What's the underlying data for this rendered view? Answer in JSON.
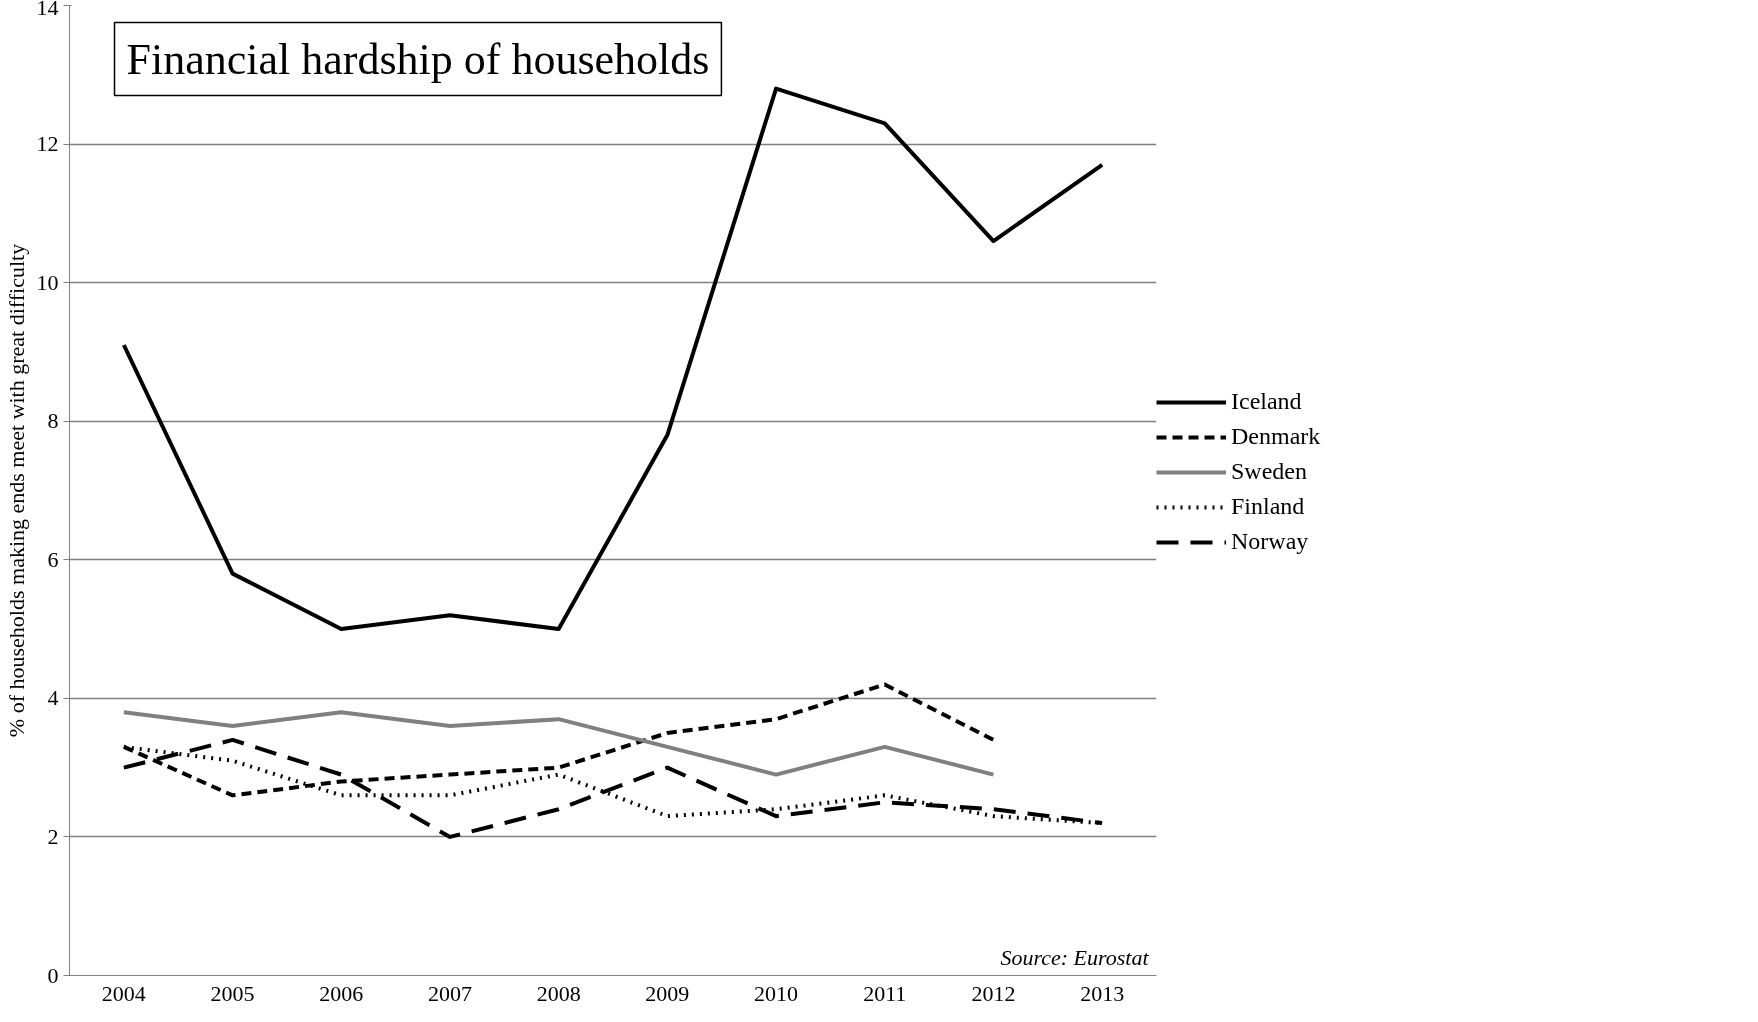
{
  "chart_data": {
    "type": "line",
    "title": "Financial hardship of households",
    "ylabel": "% of households making ends meet with great difficulty",
    "categories": [
      "2004",
      "2005",
      "2006",
      "2007",
      "2008",
      "2009",
      "2010",
      "2011",
      "2012",
      "2013"
    ],
    "series": [
      {
        "name": "Iceland",
        "color": "#000000",
        "line_style": "solid",
        "values": [
          9.1,
          5.8,
          5.0,
          5.2,
          5.0,
          7.8,
          12.8,
          12.3,
          10.6,
          11.7
        ]
      },
      {
        "name": "Denmark",
        "color": "#000000",
        "line_style": "dashed",
        "values": [
          3.3,
          2.6,
          2.8,
          2.9,
          3.0,
          3.5,
          3.7,
          4.2,
          3.4,
          null
        ]
      },
      {
        "name": "Sweden",
        "color": "#808080",
        "line_style": "solid",
        "values": [
          3.8,
          3.6,
          3.8,
          3.6,
          3.7,
          3.3,
          2.9,
          3.3,
          2.9,
          null
        ]
      },
      {
        "name": "Finland",
        "color": "#000000",
        "line_style": "dotted",
        "values": [
          3.3,
          3.1,
          2.6,
          2.6,
          2.9,
          2.3,
          2.4,
          2.6,
          2.3,
          2.2
        ]
      },
      {
        "name": "Norway",
        "color": "#000000",
        "line_style": "longdash",
        "values": [
          3.0,
          3.4,
          2.9,
          2.0,
          2.4,
          3.0,
          2.3,
          2.5,
          2.4,
          2.2
        ]
      }
    ],
    "ylim": [
      0,
      14
    ],
    "yticks": [
      0,
      2,
      4,
      6,
      8,
      10,
      12,
      14
    ],
    "grid": "y",
    "legend": "right",
    "marker": "none",
    "annotations": [
      "Source: Eurostat"
    ]
  }
}
